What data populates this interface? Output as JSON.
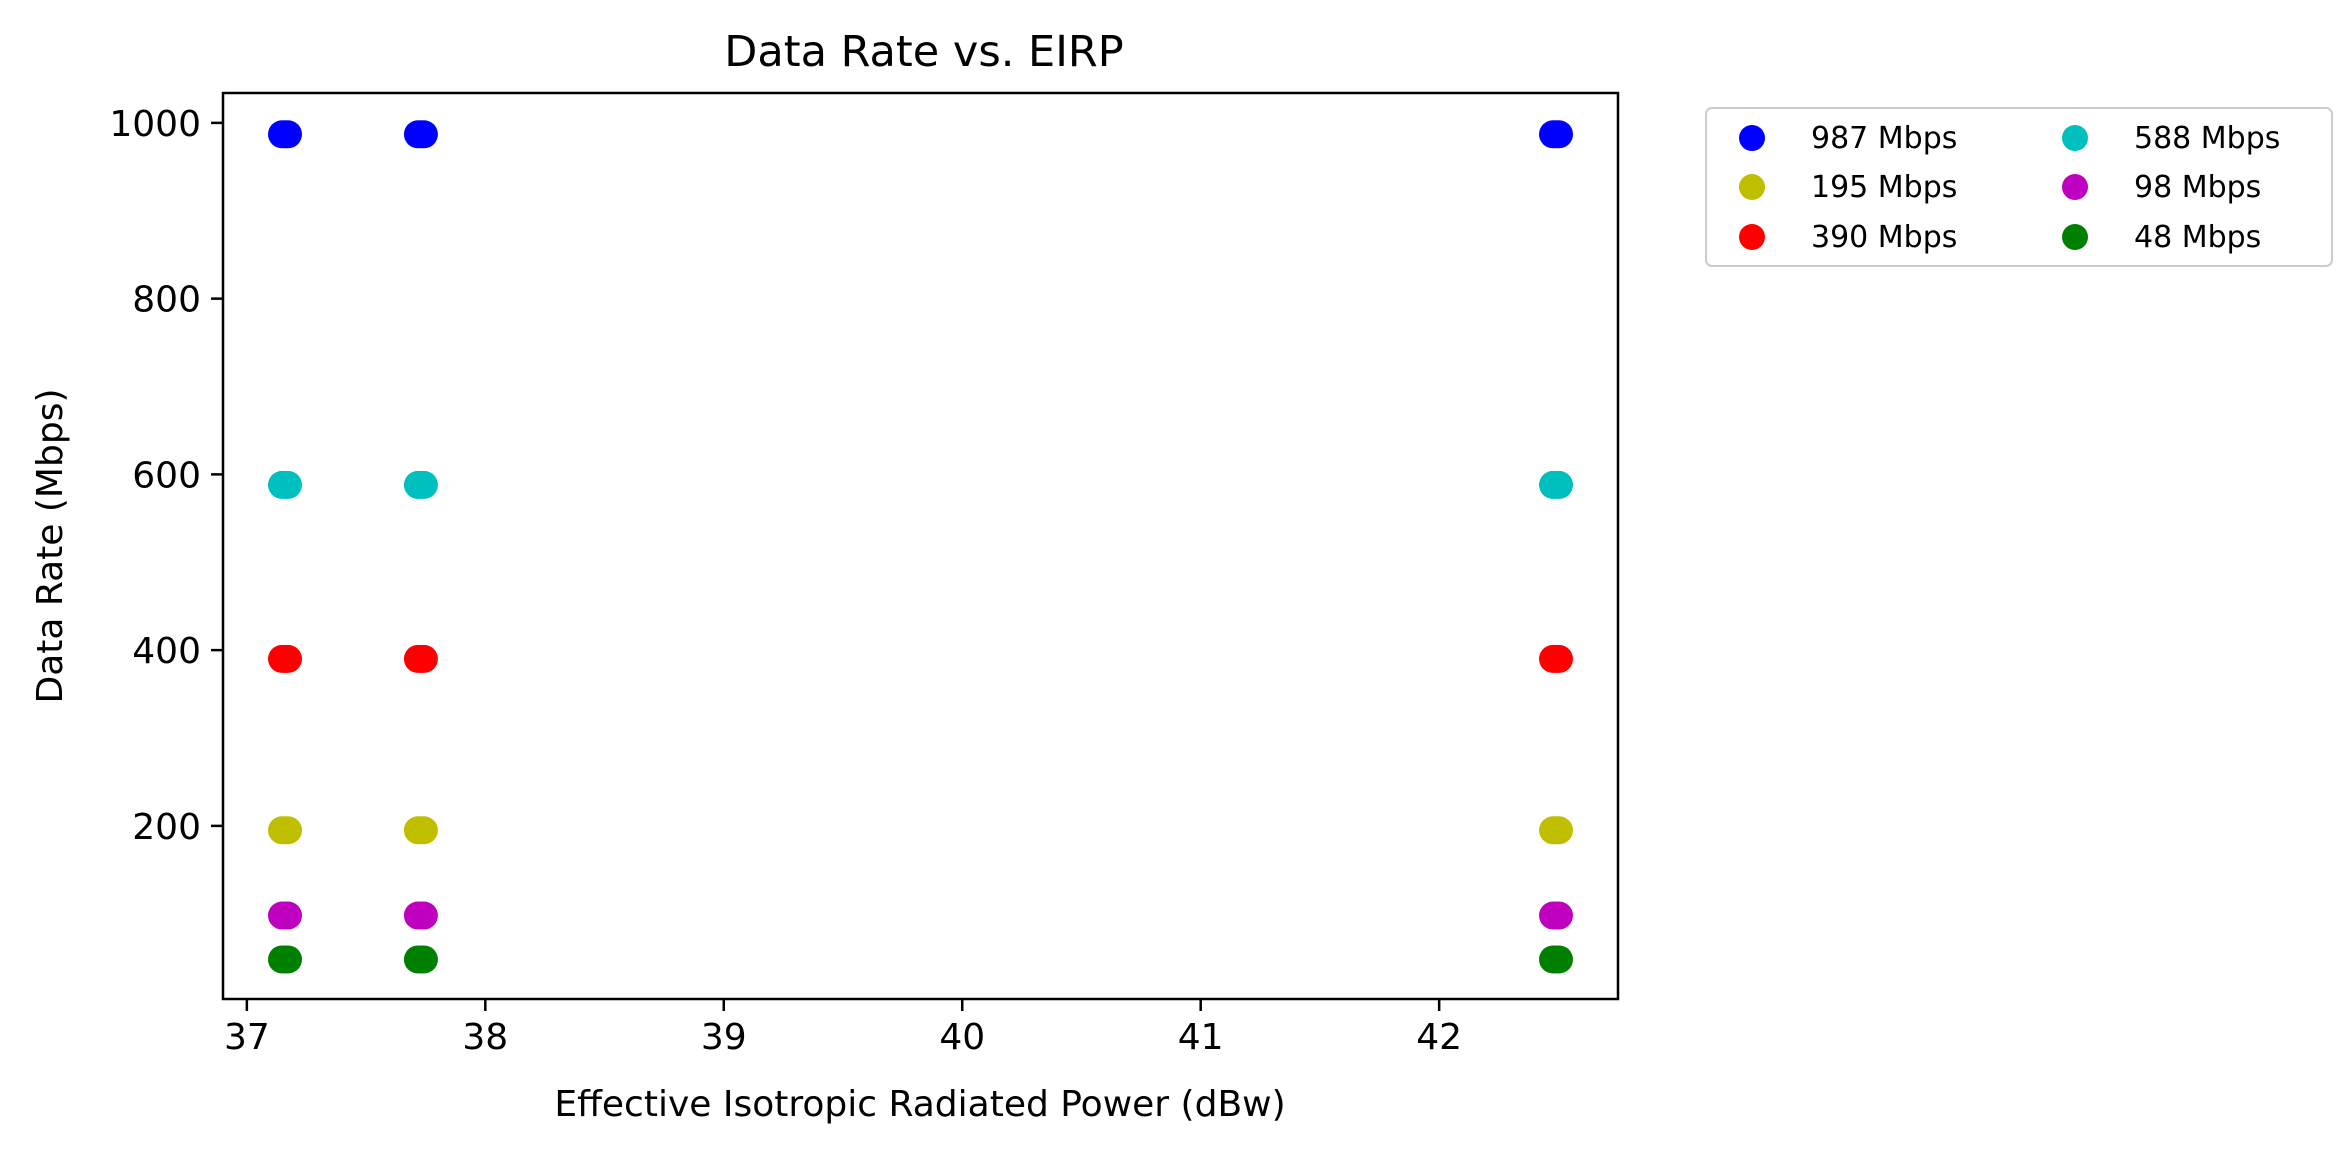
{
  "chart_data": {
    "type": "scatter",
    "title": "Data Rate vs. EIRP",
    "xlabel": "Effective Isotropic Radiated Power (dBw)",
    "ylabel": "Data Rate (Mbps)",
    "xlim": [
      36.9,
      42.75
    ],
    "ylim": [
      3,
      1034
    ],
    "xticks": [
      37,
      38,
      39,
      40,
      41,
      42
    ],
    "yticks": [
      200,
      400,
      600,
      800,
      1000
    ],
    "grid": false,
    "legend_position": "outside-top-right",
    "legend_columns": 2,
    "series": [
      {
        "name": "987 Mbps",
        "color": "#0000ff",
        "x": [
          37.16,
          37.73,
          42.49
        ],
        "y": [
          987,
          987,
          987
        ]
      },
      {
        "name": "588 Mbps",
        "color": "#00bfbf",
        "x": [
          37.16,
          37.73,
          42.49
        ],
        "y": [
          588,
          588,
          588
        ]
      },
      {
        "name": "195 Mbps",
        "color": "#bfbf00",
        "x": [
          37.16,
          37.73,
          42.49
        ],
        "y": [
          195,
          195,
          195
        ]
      },
      {
        "name": "98 Mbps",
        "color": "#bf00bf",
        "x": [
          37.16,
          37.73,
          42.49
        ],
        "y": [
          98,
          98,
          98
        ]
      },
      {
        "name": "390 Mbps",
        "color": "#ff0000",
        "x": [
          37.16,
          37.73,
          42.49
        ],
        "y": [
          390,
          390,
          390
        ]
      },
      {
        "name": "48 Mbps",
        "color": "#008000",
        "x": [
          37.16,
          37.73,
          42.49
        ],
        "y": [
          48,
          48,
          48
        ]
      }
    ]
  }
}
